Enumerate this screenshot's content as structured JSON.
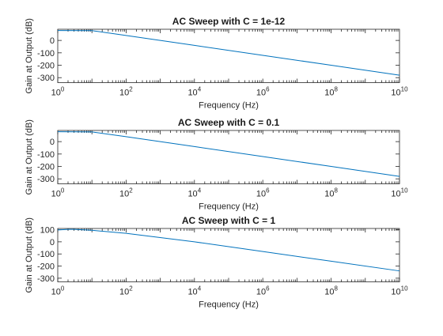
{
  "chart_data": [
    {
      "type": "line",
      "title": "AC Sweep with C = 1e-12",
      "xlabel": "Frequency (Hz)",
      "ylabel": "Gain at Output (dB)",
      "xscale": "log",
      "xlim": [
        1,
        10000000000
      ],
      "ylim": [
        -340,
        90
      ],
      "xticks": [
        {
          "base": "10",
          "exp": "0",
          "value": 1
        },
        {
          "base": "10",
          "exp": "2",
          "value": 100
        },
        {
          "base": "10",
          "exp": "4",
          "value": 10000
        },
        {
          "base": "10",
          "exp": "6",
          "value": 1000000
        },
        {
          "base": "10",
          "exp": "8",
          "value": 100000000
        },
        {
          "base": "10",
          "exp": "10",
          "value": 10000000000
        }
      ],
      "yticks": [
        {
          "label": "0",
          "value": 0
        },
        {
          "label": "-100",
          "value": -100
        },
        {
          "label": "-200",
          "value": -200
        },
        {
          "label": "-300",
          "value": -300
        }
      ],
      "grid": false,
      "legend": false,
      "color": "#0072bd",
      "series": [
        {
          "x": [
            1,
            10,
            100,
            10000,
            1000000,
            100000000,
            10000000000
          ],
          "y": [
            80,
            79,
            40,
            -40,
            -120,
            -200,
            -280
          ]
        }
      ]
    },
    {
      "type": "line",
      "title": "AC Sweep with C = 0.1",
      "xlabel": "Frequency (Hz)",
      "ylabel": "Gain at Output (dB)",
      "xscale": "log",
      "xlim": [
        1,
        10000000000
      ],
      "ylim": [
        -340,
        90
      ],
      "xticks": [
        {
          "base": "10",
          "exp": "0",
          "value": 1
        },
        {
          "base": "10",
          "exp": "2",
          "value": 100
        },
        {
          "base": "10",
          "exp": "4",
          "value": 10000
        },
        {
          "base": "10",
          "exp": "6",
          "value": 1000000
        },
        {
          "base": "10",
          "exp": "8",
          "value": 100000000
        },
        {
          "base": "10",
          "exp": "10",
          "value": 10000000000
        }
      ],
      "yticks": [
        {
          "label": "0",
          "value": 0
        },
        {
          "label": "-100",
          "value": -100
        },
        {
          "label": "-200",
          "value": -200
        },
        {
          "label": "-300",
          "value": -300
        }
      ],
      "grid": false,
      "legend": false,
      "color": "#0072bd",
      "series": [
        {
          "x": [
            1,
            10,
            100,
            10000,
            1000000,
            100000000,
            10000000000
          ],
          "y": [
            80,
            78,
            40,
            -40,
            -120,
            -200,
            -280
          ]
        }
      ]
    },
    {
      "type": "line",
      "title": "AC Sweep with C = 1",
      "xlabel": "Frequency (Hz)",
      "ylabel": "Gain at Output (dB)",
      "xscale": "log",
      "xlim": [
        1,
        10000000000
      ],
      "ylim": [
        -330,
        110
      ],
      "xticks": [
        {
          "base": "10",
          "exp": "0",
          "value": 1
        },
        {
          "base": "10",
          "exp": "2",
          "value": 100
        },
        {
          "base": "10",
          "exp": "4",
          "value": 10000
        },
        {
          "base": "10",
          "exp": "6",
          "value": 1000000
        },
        {
          "base": "10",
          "exp": "8",
          "value": 100000000
        },
        {
          "base": "10",
          "exp": "10",
          "value": 10000000000
        }
      ],
      "yticks": [
        {
          "label": "100",
          "value": 100
        },
        {
          "label": "0",
          "value": 0
        },
        {
          "label": "-100",
          "value": -100
        },
        {
          "label": "-200",
          "value": -200
        },
        {
          "label": "-300",
          "value": -300
        }
      ],
      "grid": false,
      "legend": false,
      "color": "#0072bd",
      "series": [
        {
          "x": [
            1,
            2,
            3,
            10,
            100,
            10000,
            1000000,
            100000000,
            10000000000
          ],
          "y": [
            98,
            103,
            103,
            95,
            70,
            0,
            -80,
            -160,
            -240
          ]
        }
      ]
    }
  ]
}
